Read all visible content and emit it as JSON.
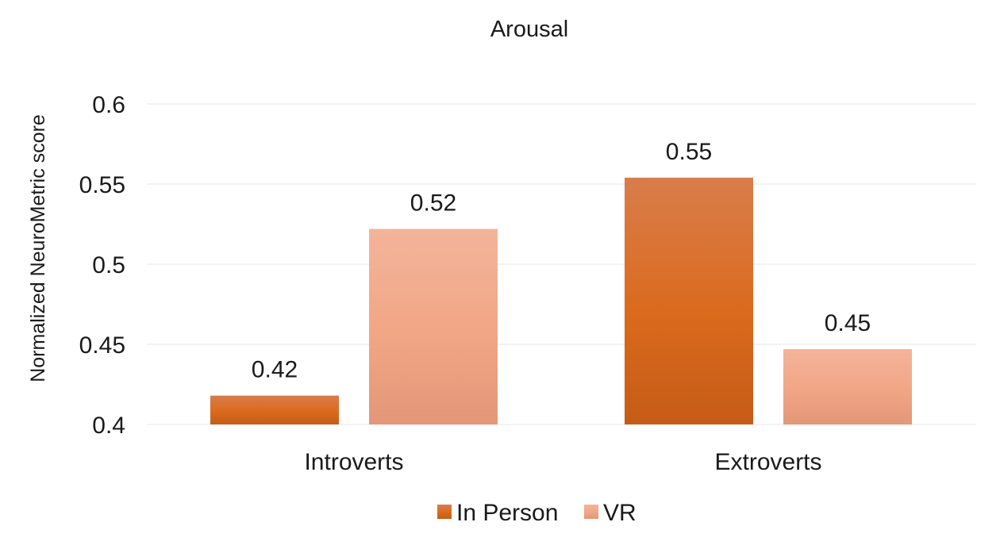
{
  "chart_data": {
    "type": "bar",
    "title": "Arousal",
    "xlabel": "",
    "ylabel": "Normalized NeuroMetric score",
    "categories": [
      "Introverts",
      "Extroverts"
    ],
    "series": [
      {
        "name": "In Person",
        "values": [
          0.418,
          0.554
        ],
        "labels": [
          "0.42",
          "0.55"
        ]
      },
      {
        "name": "VR",
        "values": [
          0.522,
          0.447
        ],
        "labels": [
          "0.52",
          "0.45"
        ]
      }
    ],
    "ylim": [
      0.4,
      0.6
    ],
    "yticks": [
      0.4,
      0.45,
      0.5,
      0.55,
      0.6
    ],
    "ytick_labels": [
      "0.4",
      "0.45",
      "0.5",
      "0.55",
      "0.6"
    ],
    "grid": true,
    "legend": "bottom",
    "colors": {
      "In Person": "#d9681e",
      "VR": "#f2a98a"
    }
  }
}
